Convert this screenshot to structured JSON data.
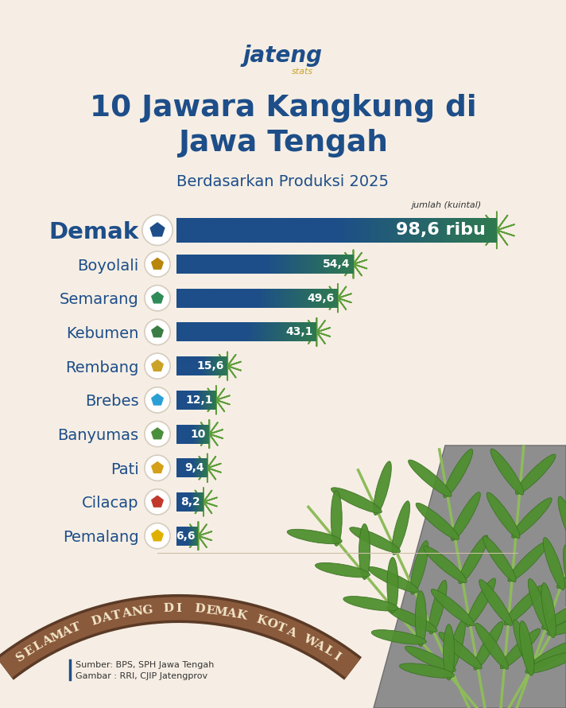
{
  "chart_data": {
    "type": "bar",
    "orientation": "horizontal",
    "title": "10 Jawara Kangkung di\nJawa Tengah",
    "subtitle": "Berdasarkan Produksi 2025",
    "xlabel": "jumlah (kuintal)",
    "logo": [
      "jateng",
      "stats"
    ],
    "source": [
      "Sumber: BPS, SPH Jawa Tengah",
      "Gambar : RRI, CJIP Jatengprov"
    ],
    "photo_text": "SELAMAT DATANG DI DEMAK KOTA WALI",
    "categories": [
      "Demak",
      "Boyolali",
      "Semarang",
      "Kebumen",
      "Rembang",
      "Brebes",
      "Banyumas",
      "Pati",
      "Cilacap",
      "Pemalang"
    ],
    "values": [
      98.6,
      54.4,
      49.6,
      43.1,
      15.6,
      12.1,
      10,
      9.4,
      8.2,
      6.6
    ],
    "value_labels": [
      "98,6 ribu",
      "54,4",
      "49,6",
      "43,1",
      "15,6",
      "12,1",
      "10",
      "9,4",
      "8,2",
      "6,6"
    ],
    "data_labels": true,
    "color": "#1d4e89",
    "xlim": [
      -6,
      105
    ],
    "tick_labels": "y",
    "grid": false
  }
}
